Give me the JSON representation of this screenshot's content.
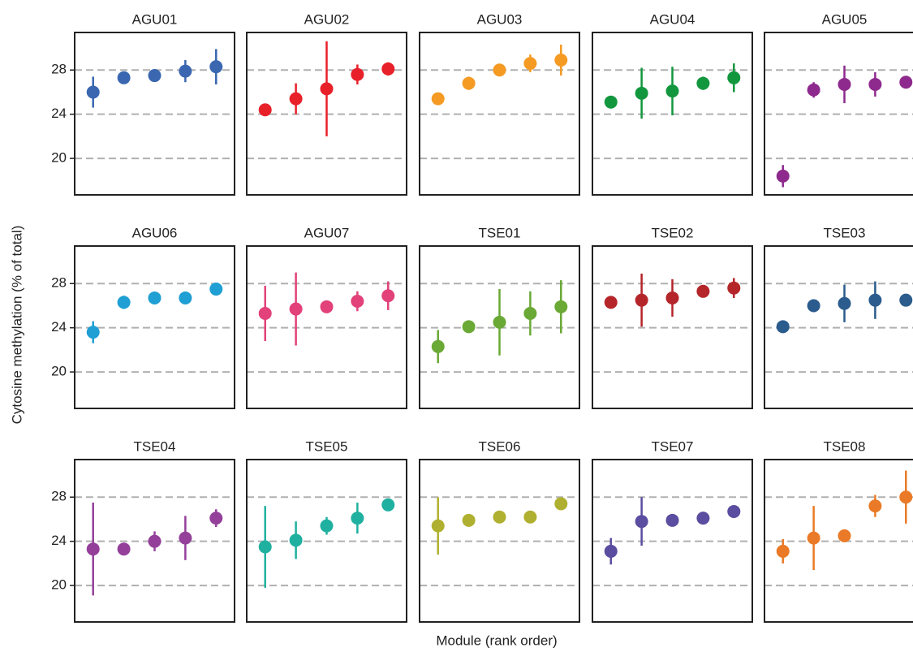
{
  "chart_data": {
    "type": "pointrange-grid",
    "ylabel": "Cytosine methylation (% of total)",
    "xlabel": "Module (rank order)",
    "ylim": [
      16.7,
      31.4
    ],
    "yticks": [
      20,
      24,
      28
    ],
    "xlim": [
      -0.6,
      4.6
    ],
    "grid": true,
    "panels": [
      {
        "title": "AGU01",
        "color": "#3a67b0",
        "values": [
          26.0,
          27.3,
          27.5,
          27.9,
          28.3
        ],
        "errors": [
          1.4,
          0.3,
          0.3,
          1.0,
          1.6
        ]
      },
      {
        "title": "AGU02",
        "color": "#e8202a",
        "values": [
          24.4,
          25.4,
          26.3,
          27.6,
          28.1
        ],
        "errors": [
          0.3,
          1.4,
          4.3,
          0.9,
          0.6
        ]
      },
      {
        "title": "AGU03",
        "color": "#f59a23",
        "values": [
          25.4,
          26.8,
          28.0,
          28.6,
          28.9
        ],
        "errors": [
          0.3,
          0.6,
          0.3,
          0.8,
          1.4
        ]
      },
      {
        "title": "AGU04",
        "color": "#13973e",
        "values": [
          25.1,
          25.9,
          26.1,
          26.8,
          27.3
        ],
        "errors": [
          0.3,
          2.3,
          2.2,
          0.6,
          1.3
        ]
      },
      {
        "title": "AGU05",
        "color": "#8e2a8e",
        "values": [
          18.4,
          26.2,
          26.7,
          26.7,
          26.9
        ],
        "errors": [
          1.0,
          0.7,
          1.7,
          1.1,
          0.3
        ]
      },
      {
        "title": "AGU06",
        "color": "#1f9fd4",
        "values": [
          23.6,
          26.3,
          26.7,
          26.7,
          27.5
        ],
        "errors": [
          1.0,
          0.6,
          0.3,
          0.3,
          0.3
        ]
      },
      {
        "title": "AGU07",
        "color": "#e2417a",
        "values": [
          25.3,
          25.7,
          25.9,
          26.4,
          26.9
        ],
        "errors": [
          2.5,
          3.3,
          0.3,
          0.9,
          1.3
        ]
      },
      {
        "title": "TSE01",
        "color": "#6aa935",
        "values": [
          22.3,
          24.1,
          24.5,
          25.3,
          25.9
        ],
        "errors": [
          1.5,
          0.4,
          3.0,
          2.0,
          2.4
        ]
      },
      {
        "title": "TSE02",
        "color": "#b5262a",
        "values": [
          26.3,
          26.5,
          26.7,
          27.3,
          27.6
        ],
        "errors": [
          0.3,
          2.4,
          1.7,
          0.3,
          0.9
        ]
      },
      {
        "title": "TSE03",
        "color": "#2b5c8d",
        "values": [
          24.1,
          26.0,
          26.2,
          26.5,
          26.5
        ],
        "errors": [
          0.3,
          0.3,
          1.7,
          1.7,
          0.3
        ]
      },
      {
        "title": "TSE04",
        "color": "#94409b",
        "values": [
          23.3,
          23.3,
          24.0,
          24.3,
          26.1
        ],
        "errors": [
          4.2,
          0.5,
          0.9,
          2.0,
          0.8
        ]
      },
      {
        "title": "TSE05",
        "color": "#1fb0a0",
        "values": [
          23.5,
          24.1,
          25.4,
          26.1,
          27.3
        ],
        "errors": [
          3.7,
          1.7,
          0.8,
          1.4,
          0.3
        ]
      },
      {
        "title": "TSE06",
        "color": "#b0b030",
        "values": [
          25.4,
          25.9,
          26.2,
          26.2,
          27.4
        ],
        "errors": [
          2.6,
          0.3,
          0.3,
          0.3,
          0.3
        ]
      },
      {
        "title": "TSE07",
        "color": "#5b4da0",
        "values": [
          23.1,
          25.8,
          25.9,
          26.1,
          26.7
        ],
        "errors": [
          1.2,
          2.2,
          0.3,
          0.3,
          0.5
        ]
      },
      {
        "title": "TSE08",
        "color": "#ea7a27",
        "values": [
          23.1,
          24.3,
          24.5,
          27.2,
          28.0
        ],
        "errors": [
          1.1,
          2.9,
          0.5,
          1.0,
          2.4
        ]
      }
    ]
  }
}
